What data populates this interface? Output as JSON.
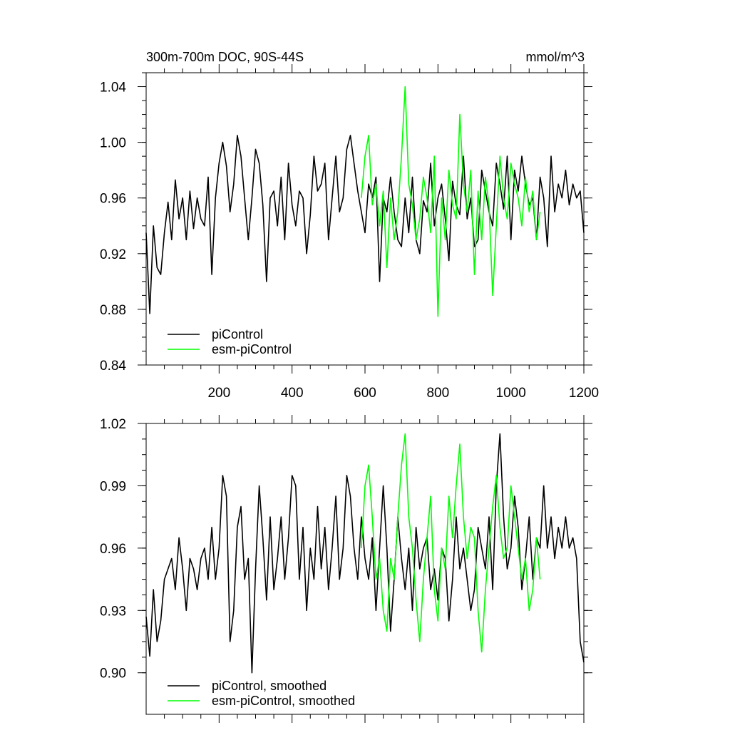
{
  "chart_data": [
    {
      "type": "line",
      "title": "300m-700m DOC, 90S-44S",
      "units": "mmol/m^3",
      "xlim": [
        0,
        1200
      ],
      "ylim": [
        0.84,
        1.05
      ],
      "xticks": [
        200,
        400,
        600,
        800,
        1000,
        1200
      ],
      "xtick_labels": [
        "200",
        "400",
        "600",
        "800",
        "1000",
        "1200"
      ],
      "yticks": [
        0.84,
        0.88,
        0.92,
        0.96,
        1.0,
        1.04
      ],
      "ytick_labels": [
        "0.84",
        "0.88",
        "0.92",
        "0.96",
        "1.00",
        "1.04"
      ],
      "legend_position": "bottom-left",
      "series": [
        {
          "name": "piControl",
          "color": "#000000",
          "x": [
            0,
            10,
            20,
            30,
            40,
            50,
            60,
            70,
            80,
            90,
            100,
            110,
            120,
            130,
            140,
            150,
            160,
            170,
            180,
            190,
            200,
            210,
            220,
            230,
            240,
            250,
            260,
            270,
            280,
            290,
            300,
            310,
            320,
            330,
            340,
            350,
            360,
            370,
            380,
            390,
            400,
            410,
            420,
            430,
            440,
            450,
            460,
            470,
            480,
            490,
            500,
            510,
            520,
            530,
            540,
            550,
            560,
            570,
            580,
            590,
            600,
            610,
            620,
            630,
            640,
            650,
            660,
            670,
            680,
            690,
            700,
            710,
            720,
            730,
            740,
            750,
            760,
            770,
            780,
            790,
            800,
            810,
            820,
            830,
            840,
            850,
            860,
            870,
            880,
            890,
            900,
            910,
            920,
            930,
            940,
            950,
            960,
            970,
            980,
            990,
            1000,
            1010,
            1020,
            1030,
            1040,
            1050,
            1060,
            1070,
            1080,
            1090,
            1100,
            1110,
            1120,
            1130,
            1140,
            1150,
            1160,
            1170,
            1180,
            1190,
            1200
          ],
          "values": [
            0.935,
            0.877,
            0.94,
            0.91,
            0.905,
            0.935,
            0.957,
            0.93,
            0.973,
            0.945,
            0.96,
            0.93,
            0.965,
            0.938,
            0.96,
            0.945,
            0.94,
            0.975,
            0.905,
            0.96,
            0.985,
            1.0,
            0.983,
            0.95,
            0.97,
            1.005,
            0.99,
            0.96,
            0.93,
            0.96,
            0.995,
            0.985,
            0.955,
            0.9,
            0.96,
            0.965,
            0.94,
            0.975,
            0.93,
            0.985,
            0.955,
            0.94,
            0.965,
            0.96,
            0.92,
            0.948,
            0.99,
            0.965,
            0.97,
            0.985,
            0.93,
            0.96,
            0.99,
            0.95,
            0.96,
            0.995,
            1.005,
            0.985,
            0.965,
            0.95,
            0.935,
            0.97,
            0.96,
            0.975,
            0.9,
            0.96,
            0.95,
            0.975,
            0.95,
            0.93,
            0.925,
            0.96,
            0.935,
            0.975,
            0.93,
            0.92,
            0.958,
            0.95,
            0.985,
            0.94,
            0.96,
            0.97,
            0.945,
            0.915,
            0.972,
            0.955,
            0.948,
            0.99,
            0.945,
            0.96,
            0.925,
            0.93,
            0.98,
            0.965,
            0.95,
            0.94,
            0.985,
            0.97,
            0.952,
            0.99,
            0.93,
            0.98,
            0.965,
            0.99,
            0.97,
            0.955,
            0.96,
            0.93,
            0.975,
            0.96,
            0.925,
            0.99,
            0.95,
            0.97,
            0.96,
            0.98,
            0.955,
            0.97,
            0.96,
            0.965,
            0.935
          ],
          "smoothed_name": "piControl, smoothed",
          "smoothed_values": [
            0.927,
            0.908,
            0.94,
            0.915,
            0.925,
            0.945,
            0.95,
            0.955,
            0.94,
            0.965,
            0.95,
            0.93,
            0.955,
            0.95,
            0.94,
            0.955,
            0.96,
            0.945,
            0.97,
            0.945,
            0.96,
            0.995,
            0.985,
            0.915,
            0.93,
            0.97,
            0.98,
            0.945,
            0.955,
            0.9,
            0.95,
            0.99,
            0.965,
            0.935,
            0.975,
            0.94,
            0.955,
            0.975,
            0.945,
            0.965,
            0.995,
            0.99,
            0.945,
            0.97,
            0.93,
            0.96,
            0.945,
            0.98,
            0.95,
            0.97,
            0.94,
            0.96,
            0.985,
            0.945,
            0.96,
            0.995,
            0.985,
            0.96,
            0.945,
            0.975,
            0.955,
            0.945,
            0.965,
            0.93,
            0.96,
            0.99,
            0.96,
            0.92,
            0.945,
            0.975,
            0.955,
            0.94,
            0.96,
            0.93,
            0.97,
            0.95,
            0.96,
            0.965,
            0.94,
            0.95,
            0.935,
            0.96,
            0.955,
            0.925,
            0.945,
            0.975,
            0.95,
            0.96,
            0.945,
            0.93,
            0.94,
            0.97,
            0.96,
            0.95,
            0.975,
            0.94,
            0.99,
            1.015,
            0.975,
            0.95,
            0.96,
            0.985,
            0.97,
            0.94,
            0.955,
            0.975,
            0.945,
            0.965,
            0.96,
            0.99,
            0.96,
            0.975,
            0.955,
            0.97,
            0.96,
            0.975,
            0.96,
            0.965,
            0.955,
            0.915,
            0.905
          ]
        },
        {
          "name": "esm-piControl",
          "color": "#00ff00",
          "x": [
            590,
            600,
            610,
            620,
            630,
            640,
            650,
            660,
            670,
            680,
            690,
            700,
            710,
            720,
            730,
            740,
            750,
            760,
            770,
            780,
            790,
            800,
            810,
            820,
            830,
            840,
            850,
            860,
            870,
            880,
            890,
            900,
            910,
            920,
            930,
            940,
            950,
            960,
            970,
            980,
            990,
            1000,
            1010,
            1020,
            1030,
            1040,
            1050,
            1060,
            1070,
            1080
          ],
          "values": [
            0.96,
            0.99,
            1.005,
            0.955,
            0.97,
            0.94,
            0.965,
            0.91,
            0.96,
            0.93,
            0.95,
            0.99,
            1.04,
            0.97,
            0.955,
            0.93,
            0.945,
            0.975,
            0.96,
            0.935,
            0.99,
            0.875,
            0.96,
            0.93,
            0.98,
            0.955,
            0.945,
            1.02,
            0.97,
            0.95,
            0.98,
            0.905,
            0.965,
            0.93,
            0.975,
            0.955,
            0.89,
            0.94,
            0.99,
            0.96,
            0.945,
            0.985,
            0.97,
            0.96,
            0.94,
            0.975,
            0.95,
            0.965,
            0.93,
            0.95
          ],
          "smoothed_name": "esm-piControl, smoothed",
          "smoothed_values": [
            0.96,
            0.99,
            1.0,
            0.975,
            0.945,
            0.955,
            0.93,
            0.92,
            0.955,
            0.945,
            0.975,
            1.0,
            1.015,
            0.975,
            0.96,
            0.935,
            0.915,
            0.945,
            0.965,
            0.985,
            0.94,
            0.925,
            0.96,
            0.95,
            0.985,
            0.965,
            0.99,
            1.01,
            0.975,
            0.955,
            0.97,
            0.965,
            0.93,
            0.91,
            0.94,
            0.96,
            0.98,
            0.995,
            0.97,
            0.955,
            0.96,
            0.99,
            0.975,
            0.96,
            0.945,
            0.955,
            0.93,
            0.94,
            0.965,
            0.945
          ]
        }
      ]
    },
    {
      "type": "line",
      "title": "",
      "xlim": [
        0,
        1200
      ],
      "ylim": [
        0.88,
        1.02
      ],
      "yticks": [
        0.9,
        0.93,
        0.96,
        0.99,
        1.02
      ],
      "ytick_labels": [
        "0.90",
        "0.93",
        "0.96",
        "0.99",
        "1.02"
      ],
      "legend_position": "bottom-left",
      "series": [
        {
          "name": "piControl, smoothed",
          "color": "#000000"
        },
        {
          "name": "esm-piControl, smoothed",
          "color": "#00ff00"
        }
      ]
    }
  ]
}
